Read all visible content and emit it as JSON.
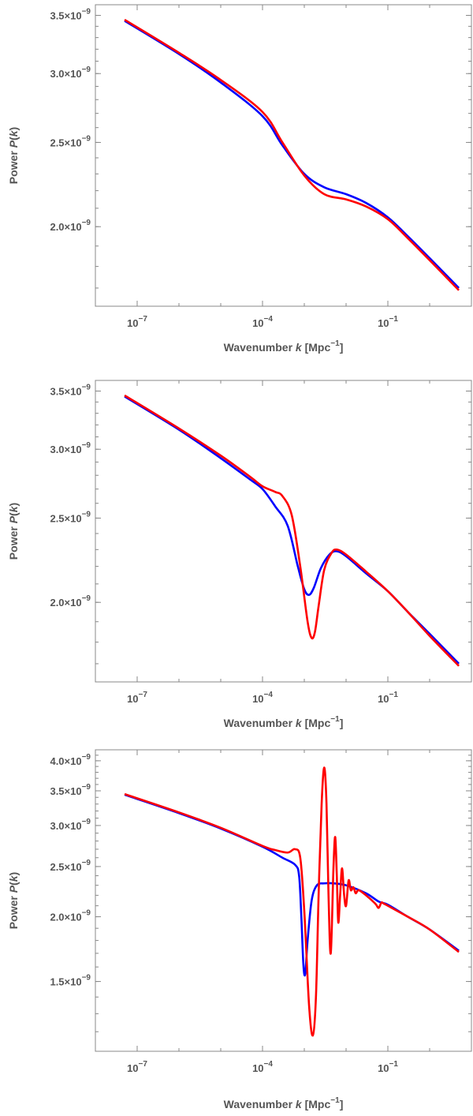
{
  "chart_data": [
    {
      "type": "line",
      "xlabel": "Wavenumber k [Mpc⁻¹]",
      "ylabel": "Power P(k)",
      "x_scale": "log",
      "y_scale": "log",
      "xlim": [
        1e-08,
        10
      ],
      "ylim": [
        1.62e-09,
        3.6e-09
      ],
      "x_ticks": [
        {
          "value": 1e-07,
          "label": "10",
          "exp": "−7"
        },
        {
          "value": 0.0001,
          "label": "10",
          "exp": "−4"
        },
        {
          "value": 0.1,
          "label": "10",
          "exp": "−1"
        }
      ],
      "y_ticks": [
        {
          "value": 2e-09,
          "label": "2.0×10",
          "exp": "−9"
        },
        {
          "value": 2.5e-09,
          "label": "2.5×10",
          "exp": "−9"
        },
        {
          "value": 3e-09,
          "label": "3.0×10",
          "exp": "−9"
        },
        {
          "value": 3.5e-09,
          "label": "3.5×10",
          "exp": "−9"
        }
      ],
      "series": [
        {
          "color": "#0000ff",
          "x": [
            5e-08,
            1e-06,
            1e-05,
            0.0001,
            0.0003,
            0.001,
            0.003,
            0.01,
            0.03,
            0.1,
            0.3,
            1,
            5
          ],
          "y": [
            3.45e-09,
            3.16e-09,
            2.93e-09,
            2.68e-09,
            2.48e-09,
            2.3e-09,
            2.22e-09,
            2.18e-09,
            2.13e-09,
            2.05e-09,
            1.95e-09,
            1.84e-09,
            1.7e-09
          ]
        },
        {
          "color": "#ff0000",
          "x": [
            5e-08,
            1e-06,
            1e-05,
            0.0001,
            0.0003,
            0.001,
            0.003,
            0.01,
            0.03,
            0.1,
            0.3,
            1,
            5
          ],
          "y": [
            3.46e-09,
            3.17e-09,
            2.95e-09,
            2.71e-09,
            2.5e-09,
            2.29e-09,
            2.18e-09,
            2.15e-09,
            2.11e-09,
            2.04e-09,
            1.94e-09,
            1.83e-09,
            1.69e-09
          ]
        }
      ]
    },
    {
      "type": "line",
      "xlabel": "Wavenumber k [Mpc⁻¹]",
      "ylabel": "Power P(k)",
      "x_scale": "log",
      "y_scale": "log",
      "xlim": [
        1e-08,
        10
      ],
      "ylim": [
        1.62e-09,
        3.6e-09
      ],
      "x_ticks": [
        {
          "value": 1e-07,
          "label": "10",
          "exp": "−7"
        },
        {
          "value": 0.0001,
          "label": "10",
          "exp": "−4"
        },
        {
          "value": 0.1,
          "label": "10",
          "exp": "−1"
        }
      ],
      "y_ticks": [
        {
          "value": 2e-09,
          "label": "2.0×10",
          "exp": "−9"
        },
        {
          "value": 2.5e-09,
          "label": "2.5×10",
          "exp": "−9"
        },
        {
          "value": 3e-09,
          "label": "3.0×10",
          "exp": "−9"
        },
        {
          "value": 3.5e-09,
          "label": "3.5×10",
          "exp": "−9"
        }
      ],
      "series": [
        {
          "color": "#0000ff",
          "x": [
            5e-08,
            1e-06,
            1e-05,
            5e-05,
            0.0001,
            0.0002,
            0.0004,
            0.0007,
            0.001,
            0.0013,
            0.0017,
            0.0025,
            0.004,
            0.006,
            0.01,
            0.03,
            0.1,
            0.3,
            1,
            5
          ],
          "y": [
            3.45e-09,
            3.16e-09,
            2.93e-09,
            2.77e-09,
            2.7e-09,
            2.58e-09,
            2.45e-09,
            2.2e-09,
            2.07e-09,
            2.04e-09,
            2.08e-09,
            2.19e-09,
            2.27e-09,
            2.29e-09,
            2.26e-09,
            2.16e-09,
            2.06e-09,
            1.95e-09,
            1.84e-09,
            1.7e-09
          ]
        },
        {
          "color": "#ff0000",
          "x": [
            5e-08,
            1e-06,
            1e-05,
            5e-05,
            0.0001,
            0.0002,
            0.0003,
            0.0005,
            0.0008,
            0.0012,
            0.0015,
            0.0018,
            0.0022,
            0.003,
            0.0045,
            0.006,
            0.01,
            0.03,
            0.1,
            0.3,
            1,
            5
          ],
          "y": [
            3.46e-09,
            3.17e-09,
            2.95e-09,
            2.79e-09,
            2.72e-09,
            2.68e-09,
            2.65e-09,
            2.52e-09,
            2.2e-09,
            1.9e-09,
            1.82e-09,
            1.85e-09,
            1.98e-09,
            2.18e-09,
            2.28e-09,
            2.3e-09,
            2.27e-09,
            2.17e-09,
            2.06e-09,
            1.95e-09,
            1.83e-09,
            1.69e-09
          ]
        }
      ]
    },
    {
      "type": "line",
      "xlabel": "Wavenumber k [Mpc⁻¹]",
      "ylabel": "Power P(k)",
      "x_scale": "log",
      "y_scale": "log",
      "xlim": [
        1e-08,
        10
      ],
      "ylim": [
        1.1e-09,
        4.2e-09
      ],
      "x_ticks": [
        {
          "value": 1e-07,
          "label": "10",
          "exp": "−7"
        },
        {
          "value": 0.0001,
          "label": "10",
          "exp": "−4"
        },
        {
          "value": 0.1,
          "label": "10",
          "exp": "−1"
        }
      ],
      "y_ticks": [
        {
          "value": 1.5e-09,
          "label": "1.5×10",
          "exp": "−9"
        },
        {
          "value": 2e-09,
          "label": "2.0×10",
          "exp": "−9"
        },
        {
          "value": 2.5e-09,
          "label": "2.5×10",
          "exp": "−9"
        },
        {
          "value": 3e-09,
          "label": "3.0×10",
          "exp": "−9"
        },
        {
          "value": 3.5e-09,
          "label": "3.5×10",
          "exp": "−9"
        },
        {
          "value": 4e-09,
          "label": "4.0×10",
          "exp": "−9"
        }
      ],
      "series": [
        {
          "color": "#0000ff",
          "x": [
            5e-08,
            1e-06,
            1e-05,
            0.0001,
            0.0003,
            0.0006,
            0.00075,
            0.00085,
            0.00095,
            0.00105,
            0.0012,
            0.0015,
            0.002,
            0.003,
            0.005,
            0.01,
            0.03,
            0.06,
            0.1,
            0.3,
            1,
            5
          ],
          "y": [
            3.44e-09,
            3.17e-09,
            2.96e-09,
            2.73e-09,
            2.6e-09,
            2.52e-09,
            2.4e-09,
            2e-09,
            1.62e-09,
            1.55e-09,
            1.8e-09,
            2.15e-09,
            2.3e-09,
            2.32e-09,
            2.32e-09,
            2.3e-09,
            2.22e-09,
            2.14e-09,
            2.11e-09,
            2e-09,
            1.89e-09,
            1.72e-09
          ]
        },
        {
          "color": "#ff0000",
          "x": [
            5e-08,
            1e-06,
            1e-05,
            0.0001,
            0.0002,
            0.0004,
            0.0006,
            0.0008,
            0.001,
            0.0013,
            0.0016,
            0.0019,
            0.0022,
            0.0026,
            0.003,
            0.0034,
            0.0038,
            0.0043,
            0.005,
            0.0055,
            0.006,
            0.0065,
            0.0072,
            0.008,
            0.009,
            0.01,
            0.0115,
            0.013,
            0.015,
            0.017,
            0.02,
            0.03,
            0.05,
            0.06,
            0.07,
            0.08,
            0.1,
            0.3,
            1,
            5
          ],
          "y": [
            3.45e-09,
            3.18e-09,
            2.97e-09,
            2.74e-09,
            2.69e-09,
            2.66e-09,
            2.7e-09,
            2.6e-09,
            2.05e-09,
            1.35e-09,
            1.18e-09,
            1.4e-09,
            2.2e-09,
            3.3e-09,
            3.88e-09,
            3.3e-09,
            2.2e-09,
            1.7e-09,
            2.5e-09,
            2.85e-09,
            2.4e-09,
            1.95e-09,
            2.2e-09,
            2.48e-09,
            2.2e-09,
            2.1e-09,
            2.35e-09,
            2.25e-09,
            2.28e-09,
            2.22e-09,
            2.25e-09,
            2.2e-09,
            2.12e-09,
            2.08e-09,
            2.13e-09,
            2.12e-09,
            2.1e-09,
            2e-09,
            1.89e-09,
            1.71e-09
          ]
        }
      ]
    }
  ]
}
